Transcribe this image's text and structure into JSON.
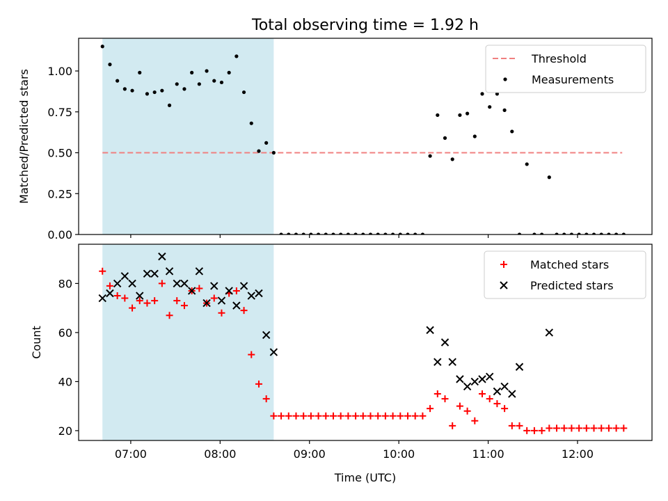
{
  "title": "Total observing time = 1.92 h",
  "colors": {
    "shade": "#add8e6",
    "threshold": "#f08080",
    "matched": "#ff0000",
    "predicted": "#000000",
    "measurement": "#000000"
  },
  "chart_data": [
    {
      "type": "scatter",
      "ylabel": "Matched/Predicted stars",
      "xlim": [
        "06:25",
        "12:50"
      ],
      "ylim": [
        0,
        1.2
      ],
      "yticks": [
        0.0,
        0.25,
        0.5,
        0.75,
        1.0
      ],
      "ytick_labels": [
        "0.00",
        "0.25",
        "0.50",
        "0.75",
        "1.00"
      ],
      "shaded_interval": [
        "06:41",
        "08:36"
      ],
      "legend": {
        "position": "upper right",
        "entries": [
          "Threshold",
          "Measurements"
        ]
      },
      "threshold": {
        "name": "Threshold",
        "y": 0.5,
        "x": [
          "06:41",
          "12:30"
        ]
      },
      "series": [
        {
          "name": "Measurements",
          "x": [
            "06:41",
            "06:46",
            "06:51",
            "06:56",
            "07:01",
            "07:06",
            "07:11",
            "07:16",
            "07:21",
            "07:26",
            "07:31",
            "07:36",
            "07:41",
            "07:46",
            "07:51",
            "07:56",
            "08:01",
            "08:06",
            "08:11",
            "08:16",
            "08:21",
            "08:26",
            "08:31",
            "08:36",
            "08:41",
            "08:46",
            "08:51",
            "08:56",
            "09:01",
            "09:06",
            "09:11",
            "09:16",
            "09:21",
            "09:26",
            "09:31",
            "09:36",
            "09:41",
            "09:46",
            "09:51",
            "09:56",
            "10:01",
            "10:06",
            "10:11",
            "10:16",
            "10:21",
            "10:26",
            "10:31",
            "10:36",
            "10:41",
            "10:46",
            "10:51",
            "10:56",
            "11:01",
            "11:06",
            "11:11",
            "11:16",
            "11:21",
            "11:26",
            "11:31",
            "11:36",
            "11:41",
            "11:46",
            "11:51",
            "11:56",
            "12:01",
            "12:06",
            "12:11",
            "12:16",
            "12:21",
            "12:26",
            "12:31"
          ],
          "y": [
            1.15,
            1.04,
            0.94,
            0.89,
            0.88,
            0.99,
            0.86,
            0.87,
            0.88,
            0.79,
            0.92,
            0.89,
            0.99,
            0.92,
            1.0,
            0.94,
            0.93,
            0.99,
            1.09,
            0.87,
            0.68,
            0.51,
            0.56,
            0.5,
            0,
            0,
            0,
            0,
            0,
            0,
            0,
            0,
            0,
            0,
            0,
            0,
            0,
            0,
            0,
            0,
            0,
            0,
            0,
            0,
            0.48,
            0.73,
            0.59,
            0.46,
            0.73,
            0.74,
            0.6,
            0.86,
            0.78,
            0.86,
            0.76,
            0.63,
            0,
            0.43,
            0,
            0,
            0.35,
            0,
            0,
            0,
            0,
            0,
            0,
            0,
            0,
            0,
            0
          ]
        }
      ]
    },
    {
      "type": "scatter",
      "xlabel": "Time (UTC)",
      "ylabel": "Count",
      "xlim": [
        "06:25",
        "12:50"
      ],
      "ylim": [
        16,
        96
      ],
      "xticks": [
        "07:00",
        "08:00",
        "09:00",
        "10:00",
        "11:00",
        "12:00"
      ],
      "yticks": [
        20,
        40,
        60,
        80
      ],
      "shaded_interval": [
        "06:41",
        "08:36"
      ],
      "legend": {
        "position": "upper right",
        "entries": [
          "Matched stars",
          "Predicted stars"
        ]
      },
      "series": [
        {
          "name": "Matched stars",
          "marker": "+",
          "x": [
            "06:41",
            "06:46",
            "06:51",
            "06:56",
            "07:01",
            "07:06",
            "07:11",
            "07:16",
            "07:21",
            "07:26",
            "07:31",
            "07:36",
            "07:41",
            "07:46",
            "07:51",
            "07:56",
            "08:01",
            "08:06",
            "08:11",
            "08:16",
            "08:21",
            "08:26",
            "08:31",
            "08:36",
            "08:41",
            "08:46",
            "08:51",
            "08:56",
            "09:01",
            "09:06",
            "09:11",
            "09:16",
            "09:21",
            "09:26",
            "09:31",
            "09:36",
            "09:41",
            "09:46",
            "09:51",
            "09:56",
            "10:01",
            "10:06",
            "10:11",
            "10:16",
            "10:21",
            "10:26",
            "10:31",
            "10:36",
            "10:41",
            "10:46",
            "10:51",
            "10:56",
            "11:01",
            "11:06",
            "11:11",
            "11:16",
            "11:21",
            "11:26",
            "11:31",
            "11:36",
            "11:41",
            "11:46",
            "11:51",
            "11:56",
            "12:01",
            "12:06",
            "12:11",
            "12:16",
            "12:21",
            "12:26",
            "12:31"
          ],
          "y": [
            85,
            79,
            75,
            74,
            70,
            73,
            72,
            73,
            80,
            67,
            73,
            71,
            77,
            78,
            72,
            74,
            68,
            76,
            77,
            69,
            51,
            39,
            33,
            26,
            26,
            26,
            26,
            26,
            26,
            26,
            26,
            26,
            26,
            26,
            26,
            26,
            26,
            26,
            26,
            26,
            26,
            26,
            26,
            26,
            29,
            35,
            33,
            22,
            30,
            28,
            24,
            35,
            33,
            31,
            29,
            22,
            22,
            20,
            20,
            20,
            21,
            21,
            21,
            21,
            21,
            21,
            21,
            21,
            21,
            21,
            21
          ]
        },
        {
          "name": "Predicted stars",
          "marker": "x",
          "x": [
            "06:41",
            "06:46",
            "06:51",
            "06:56",
            "07:01",
            "07:06",
            "07:11",
            "07:16",
            "07:21",
            "07:26",
            "07:31",
            "07:36",
            "07:41",
            "07:46",
            "07:51",
            "07:56",
            "08:01",
            "08:06",
            "08:11",
            "08:16",
            "08:21",
            "08:26",
            "08:31",
            "08:36",
            "10:21",
            "10:26",
            "10:31",
            "10:36",
            "10:41",
            "10:46",
            "10:51",
            "10:56",
            "11:01",
            "11:06",
            "11:11",
            "11:16",
            "11:21",
            "11:41"
          ],
          "y": [
            74,
            76,
            80,
            83,
            80,
            75,
            84,
            84,
            91,
            85,
            80,
            80,
            77,
            85,
            72,
            79,
            73,
            77,
            71,
            79,
            75,
            76,
            59,
            52,
            61,
            48,
            56,
            48,
            41,
            38,
            40,
            41,
            42,
            36,
            38,
            35,
            46,
            60
          ]
        }
      ]
    }
  ]
}
